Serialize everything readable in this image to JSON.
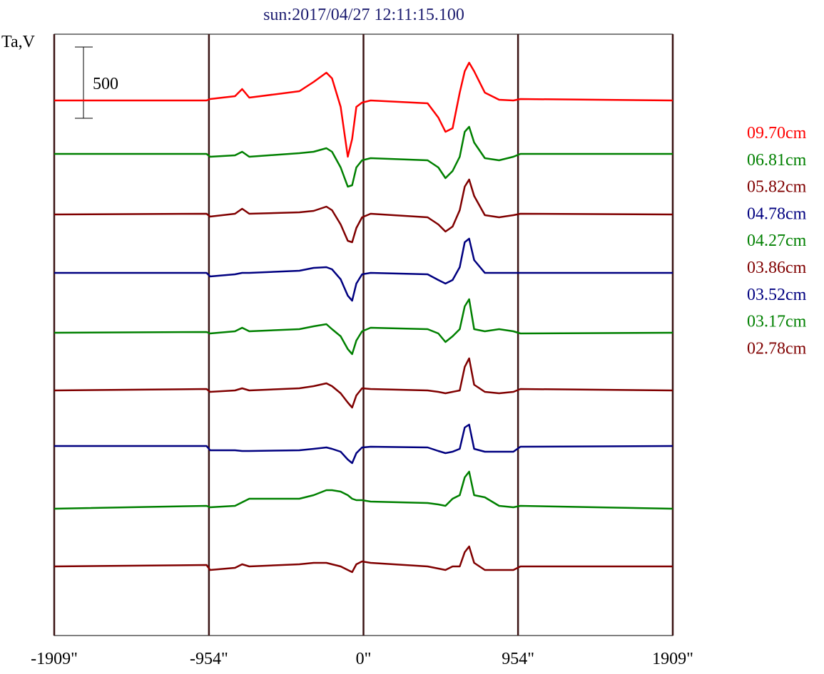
{
  "chart_data": {
    "type": "line",
    "title": "sun:2017/04/27 12:11:15.100",
    "y_label": "Ta,V",
    "scale_bar": 500,
    "grid": true,
    "xlim": [
      -1909,
      1909
    ],
    "ylim": [
      0,
      4220
    ],
    "xticks": [
      {
        "value": -1909,
        "label": "-1909\""
      },
      {
        "value": -954,
        "label": "-954\""
      },
      {
        "value": 0,
        "label": "0\""
      },
      {
        "value": 954,
        "label": "954\""
      },
      {
        "value": 1909,
        "label": "1909\""
      }
    ],
    "x": [
      -1909,
      -969,
      -947,
      -793,
      -749,
      -705,
      -396,
      -308,
      -229,
      -194,
      -141,
      -97,
      -70,
      -44,
      -9,
      44,
      396,
      462,
      506,
      550,
      594,
      625,
      652,
      683,
      749,
      837,
      925,
      969,
      1909
    ],
    "series": [
      {
        "name": "09.70cm",
        "color": "#ff0000",
        "values": [
          3755,
          3755,
          3765,
          3785,
          3835,
          3775,
          3820,
          3885,
          3950,
          3910,
          3710,
          3360,
          3485,
          3710,
          3740,
          3755,
          3735,
          3635,
          3535,
          3560,
          3810,
          3960,
          4020,
          3960,
          3810,
          3760,
          3755,
          3765,
          3755
        ]
      },
      {
        "name": "06.81cm",
        "color": "#008000",
        "values": [
          3380,
          3380,
          3360,
          3370,
          3395,
          3360,
          3385,
          3395,
          3420,
          3395,
          3285,
          3150,
          3160,
          3285,
          3335,
          3350,
          3335,
          3285,
          3210,
          3260,
          3360,
          3535,
          3570,
          3460,
          3350,
          3335,
          3360,
          3380,
          3380
        ]
      },
      {
        "name": "05.82cm",
        "color": "#800000",
        "values": [
          2955,
          2960,
          2940,
          2960,
          2995,
          2960,
          2970,
          2980,
          3010,
          2985,
          2885,
          2770,
          2760,
          2860,
          2935,
          2960,
          2935,
          2885,
          2835,
          2870,
          2985,
          3150,
          3200,
          3085,
          2950,
          2935,
          2950,
          2960,
          2955
        ]
      },
      {
        "name": "04.78cm",
        "color": "#000080",
        "values": [
          2545,
          2545,
          2520,
          2535,
          2545,
          2545,
          2560,
          2580,
          2585,
          2570,
          2500,
          2385,
          2350,
          2470,
          2535,
          2545,
          2535,
          2495,
          2470,
          2495,
          2585,
          2760,
          2785,
          2635,
          2545,
          2545,
          2545,
          2545,
          2545
        ]
      },
      {
        "name": "04.27cm",
        "color": "#008000",
        "values": [
          2125,
          2130,
          2120,
          2135,
          2160,
          2135,
          2150,
          2170,
          2185,
          2150,
          2100,
          2010,
          1975,
          2070,
          2135,
          2160,
          2150,
          2120,
          2060,
          2100,
          2150,
          2310,
          2360,
          2150,
          2135,
          2150,
          2135,
          2120,
          2125
        ]
      },
      {
        "name": "03.86cm",
        "color": "#800000",
        "values": [
          1720,
          1730,
          1710,
          1720,
          1735,
          1720,
          1735,
          1750,
          1770,
          1750,
          1700,
          1635,
          1600,
          1685,
          1735,
          1730,
          1720,
          1710,
          1700,
          1710,
          1720,
          1885,
          1945,
          1760,
          1710,
          1700,
          1710,
          1730,
          1720
        ]
      },
      {
        "name": "03.52cm",
        "color": "#000080",
        "values": [
          1330,
          1330,
          1300,
          1300,
          1295,
          1295,
          1300,
          1310,
          1320,
          1310,
          1290,
          1235,
          1210,
          1280,
          1320,
          1325,
          1320,
          1295,
          1280,
          1290,
          1310,
          1460,
          1480,
          1310,
          1290,
          1290,
          1290,
          1325,
          1330
        ]
      },
      {
        "name": "03.17cm",
        "color": "#008000",
        "values": [
          890,
          910,
          900,
          910,
          935,
          960,
          960,
          985,
          1020,
          1020,
          1010,
          985,
          960,
          950,
          950,
          940,
          930,
          920,
          910,
          960,
          985,
          1110,
          1150,
          985,
          970,
          910,
          900,
          910,
          890
        ]
      },
      {
        "name": "02.78cm",
        "color": "#800000",
        "values": [
          485,
          495,
          460,
          475,
          500,
          485,
          500,
          510,
          510,
          500,
          485,
          460,
          445,
          500,
          520,
          510,
          485,
          470,
          460,
          485,
          485,
          585,
          625,
          510,
          460,
          460,
          460,
          485,
          485
        ]
      }
    ]
  }
}
